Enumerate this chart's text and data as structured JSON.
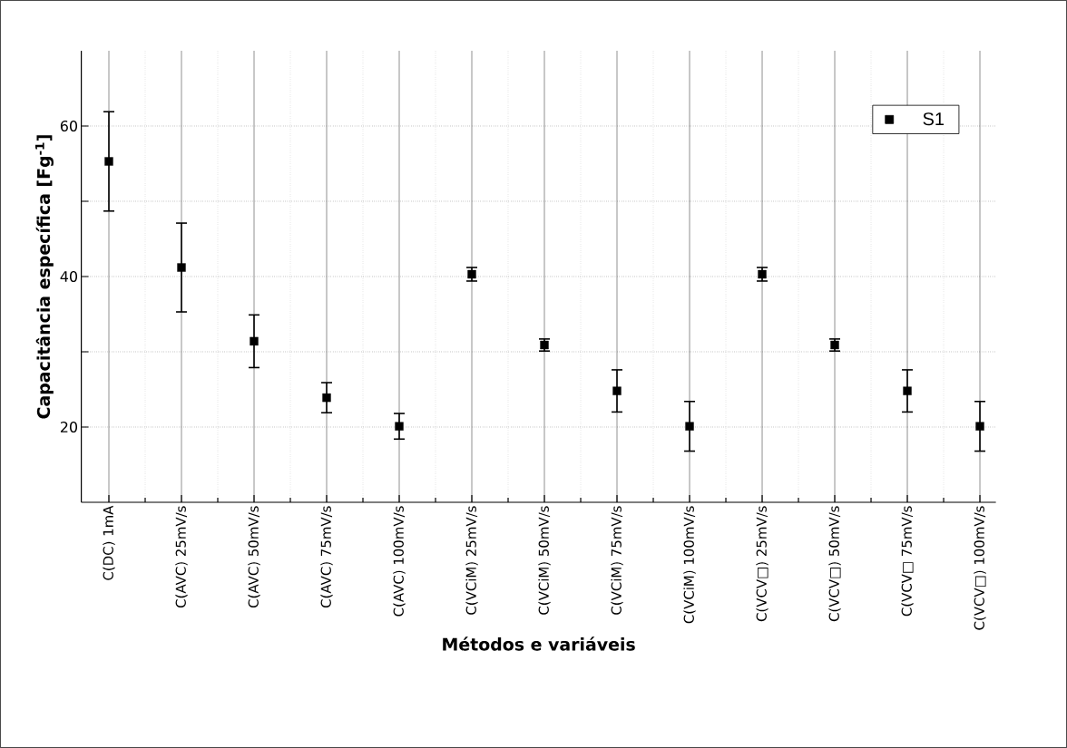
{
  "chart_data": {
    "type": "scatter",
    "xlabel": "Métodos e variáveis",
    "ylabel": "Capacitância específica [Fg$^{-1}$]",
    "categories": [
      "C(DC) 1mA",
      "C(AVC) 25mV/s",
      "C(AVC) 50mV/s",
      "C(AVC) 75mV/s",
      "C(AVC) 100mV/s",
      "C(VCiM) 25mV/s",
      "C(VCiM) 50mV/s",
      "C(VCiM) 75mV/s",
      "C(VCiM) 100mV/s",
      "C(VCV□) 25mV/s",
      "C(VCV□) 50mV/s",
      "C(VCV□ 75mV/s",
      "C(VCV□) 100mV/s"
    ],
    "series": [
      {
        "name": "S1",
        "color": "#000000",
        "values": [
          55.3,
          41.2,
          31.4,
          23.9,
          20.1,
          40.3,
          30.9,
          24.8,
          20.1,
          40.3,
          30.9,
          24.8,
          20.1
        ],
        "errors": [
          6.6,
          5.9,
          3.5,
          2.0,
          1.7,
          0.9,
          0.8,
          2.8,
          3.3,
          0.9,
          0.8,
          2.8,
          3.3
        ]
      }
    ],
    "ylim": [
      10,
      70
    ],
    "yticks": [
      20,
      {
        "value": 30,
        "label": null
      },
      40,
      {
        "value": 50,
        "label": null
      },
      60
    ],
    "grid": true,
    "legend": "top right",
    "marker": "square"
  }
}
